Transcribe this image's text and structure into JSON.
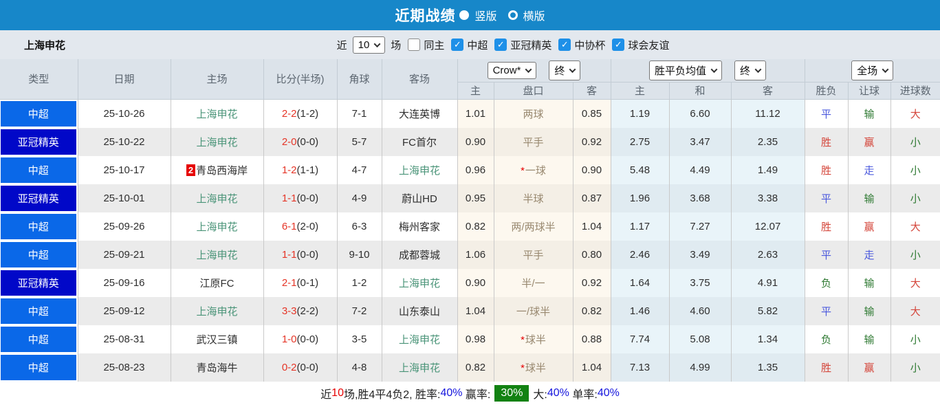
{
  "colors": {
    "title_bar": "#1787c9",
    "csl_badge": "#0a68e8",
    "acl_badge": "#0108c8",
    "score_red": "#e53527",
    "team_green": "#4a9478",
    "res_red": "#d4453a",
    "res_blue": "#4a58dd",
    "res_green": "#2f7a33",
    "cb_blue": "#1e90e8",
    "sum_green": "#128212",
    "sum_blue": "#1515dd"
  },
  "title_bar": {
    "title": "近期战绩",
    "radio_vertical_label": "竖版",
    "radio_horizontal_label": "横版"
  },
  "filter_bar": {
    "team": "上海申花",
    "recent_label": "近",
    "recent_value": "10",
    "games_label": "场",
    "same_home_label": "同主",
    "leagues": [
      "中超",
      "亚冠精英",
      "中协杯",
      "球会友谊"
    ]
  },
  "table": {
    "static_headers": [
      "类型",
      "日期",
      "主场",
      "比分(半场)",
      "角球",
      "客场"
    ],
    "group1": {
      "select1": "Crow*",
      "select2": "终",
      "cols": [
        "主",
        "盘口",
        "客"
      ]
    },
    "group2": {
      "select1": "胜平负均值",
      "select2": "终",
      "cols": [
        "主",
        "和",
        "客"
      ]
    },
    "group3": {
      "select1": "全场",
      "cols": [
        "胜负",
        "让球",
        "进球数"
      ]
    },
    "rows": [
      {
        "type": "中超",
        "type_class": "csl",
        "date": "25-10-26",
        "home": "上海申花",
        "home_color": "green",
        "score_ft": "2-2",
        "score_ht": "(1-2)",
        "corner": "7-1",
        "away": "大连英博",
        "away_color": "dark",
        "ah_home": "1.01",
        "handicap": "两球",
        "handicap_star": false,
        "ah_away": "0.85",
        "avg_home": "1.19",
        "avg_draw": "6.60",
        "avg_away": "11.12",
        "res_wdl": {
          "text": "平",
          "color": "blue"
        },
        "res_ah": {
          "text": "输",
          "color": "green"
        },
        "res_goal": {
          "text": "大",
          "color": "red"
        }
      },
      {
        "type": "亚冠精英",
        "type_class": "acl",
        "date": "25-10-22",
        "home": "上海申花",
        "home_color": "green",
        "score_ft": "2-0",
        "score_ht": "(0-0)",
        "corner": "5-7",
        "away": "FC首尔",
        "away_color": "dark",
        "ah_home": "0.90",
        "handicap": "平手",
        "handicap_star": false,
        "ah_away": "0.92",
        "avg_home": "2.75",
        "avg_draw": "3.47",
        "avg_away": "2.35",
        "res_wdl": {
          "text": "胜",
          "color": "red"
        },
        "res_ah": {
          "text": "赢",
          "color": "red"
        },
        "res_goal": {
          "text": "小",
          "color": "green"
        }
      },
      {
        "type": "中超",
        "type_class": "csl",
        "date": "25-10-17",
        "home": "青岛西海岸",
        "home_color": "dark",
        "home_badge": "2",
        "score_ft": "1-2",
        "score_ht": "(1-1)",
        "corner": "4-7",
        "away": "上海申花",
        "away_color": "green",
        "ah_home": "0.96",
        "handicap": "一球",
        "handicap_star": true,
        "ah_away": "0.90",
        "avg_home": "5.48",
        "avg_draw": "4.49",
        "avg_away": "1.49",
        "res_wdl": {
          "text": "胜",
          "color": "red"
        },
        "res_ah": {
          "text": "走",
          "color": "blue"
        },
        "res_goal": {
          "text": "小",
          "color": "green"
        }
      },
      {
        "type": "亚冠精英",
        "type_class": "acl",
        "date": "25-10-01",
        "home": "上海申花",
        "home_color": "green",
        "score_ft": "1-1",
        "score_ht": "(0-0)",
        "corner": "4-9",
        "away": "蔚山HD",
        "away_color": "dark",
        "ah_home": "0.95",
        "handicap": "半球",
        "handicap_star": false,
        "ah_away": "0.87",
        "avg_home": "1.96",
        "avg_draw": "3.68",
        "avg_away": "3.38",
        "res_wdl": {
          "text": "平",
          "color": "blue"
        },
        "res_ah": {
          "text": "输",
          "color": "green"
        },
        "res_goal": {
          "text": "小",
          "color": "green"
        }
      },
      {
        "type": "中超",
        "type_class": "csl",
        "date": "25-09-26",
        "home": "上海申花",
        "home_color": "green",
        "score_ft": "6-1",
        "score_ht": "(2-0)",
        "corner": "6-3",
        "away": "梅州客家",
        "away_color": "dark",
        "ah_home": "0.82",
        "handicap": "两/两球半",
        "handicap_star": false,
        "ah_away": "1.04",
        "avg_home": "1.17",
        "avg_draw": "7.27",
        "avg_away": "12.07",
        "res_wdl": {
          "text": "胜",
          "color": "red"
        },
        "res_ah": {
          "text": "赢",
          "color": "red"
        },
        "res_goal": {
          "text": "大",
          "color": "red"
        }
      },
      {
        "type": "中超",
        "type_class": "csl",
        "date": "25-09-21",
        "home": "上海申花",
        "home_color": "green",
        "score_ft": "1-1",
        "score_ht": "(0-0)",
        "corner": "9-10",
        "away": "成都蓉城",
        "away_color": "dark",
        "ah_home": "1.06",
        "handicap": "平手",
        "handicap_star": false,
        "ah_away": "0.80",
        "avg_home": "2.46",
        "avg_draw": "3.49",
        "avg_away": "2.63",
        "res_wdl": {
          "text": "平",
          "color": "blue"
        },
        "res_ah": {
          "text": "走",
          "color": "blue"
        },
        "res_goal": {
          "text": "小",
          "color": "green"
        }
      },
      {
        "type": "亚冠精英",
        "type_class": "acl",
        "date": "25-09-16",
        "home": "江原FC",
        "home_color": "dark",
        "score_ft": "2-1",
        "score_ht": "(0-1)",
        "corner": "1-2",
        "away": "上海申花",
        "away_color": "green",
        "ah_home": "0.90",
        "handicap": "半/一",
        "handicap_star": false,
        "ah_away": "0.92",
        "avg_home": "1.64",
        "avg_draw": "3.75",
        "avg_away": "4.91",
        "res_wdl": {
          "text": "负",
          "color": "green"
        },
        "res_ah": {
          "text": "输",
          "color": "green"
        },
        "res_goal": {
          "text": "大",
          "color": "red"
        }
      },
      {
        "type": "中超",
        "type_class": "csl",
        "date": "25-09-12",
        "home": "上海申花",
        "home_color": "green",
        "score_ft": "3-3",
        "score_ht": "(2-2)",
        "corner": "7-2",
        "away": "山东泰山",
        "away_color": "dark",
        "ah_home": "1.04",
        "handicap": "一/球半",
        "handicap_star": false,
        "ah_away": "0.82",
        "avg_home": "1.46",
        "avg_draw": "4.60",
        "avg_away": "5.82",
        "res_wdl": {
          "text": "平",
          "color": "blue"
        },
        "res_ah": {
          "text": "输",
          "color": "green"
        },
        "res_goal": {
          "text": "大",
          "color": "red"
        }
      },
      {
        "type": "中超",
        "type_class": "csl",
        "date": "25-08-31",
        "home": "武汉三镇",
        "home_color": "dark",
        "score_ft": "1-0",
        "score_ht": "(0-0)",
        "corner": "3-5",
        "away": "上海申花",
        "away_color": "green",
        "ah_home": "0.98",
        "handicap": "球半",
        "handicap_star": true,
        "ah_away": "0.88",
        "avg_home": "7.74",
        "avg_draw": "5.08",
        "avg_away": "1.34",
        "res_wdl": {
          "text": "负",
          "color": "green"
        },
        "res_ah": {
          "text": "输",
          "color": "green"
        },
        "res_goal": {
          "text": "小",
          "color": "green"
        }
      },
      {
        "type": "中超",
        "type_class": "csl",
        "date": "25-08-23",
        "home": "青岛海牛",
        "home_color": "dark",
        "score_ft": "0-2",
        "score_ht": "(0-0)",
        "corner": "4-8",
        "away": "上海申花",
        "away_color": "green",
        "ah_home": "0.82",
        "handicap": "球半",
        "handicap_star": true,
        "ah_away": "1.04",
        "avg_home": "7.13",
        "avg_draw": "4.99",
        "avg_away": "1.35",
        "res_wdl": {
          "text": "胜",
          "color": "red"
        },
        "res_ah": {
          "text": "赢",
          "color": "red"
        },
        "res_goal": {
          "text": "小",
          "color": "green"
        }
      }
    ]
  },
  "summary": {
    "segments": [
      {
        "text": "近",
        "style": "plain"
      },
      {
        "text": "10",
        "style": "red"
      },
      {
        "text": "场,胜4平4负2, 胜率:",
        "style": "plain"
      },
      {
        "text": "40%",
        "style": "blue"
      },
      {
        "text": " 赢率:",
        "style": "plain"
      },
      {
        "text": "30%",
        "style": "greenbox"
      },
      {
        "text": "大:",
        "style": "plain"
      },
      {
        "text": "40%",
        "style": "blue"
      },
      {
        "text": " 单率:",
        "style": "plain"
      },
      {
        "text": "40%",
        "style": "blue"
      }
    ]
  }
}
